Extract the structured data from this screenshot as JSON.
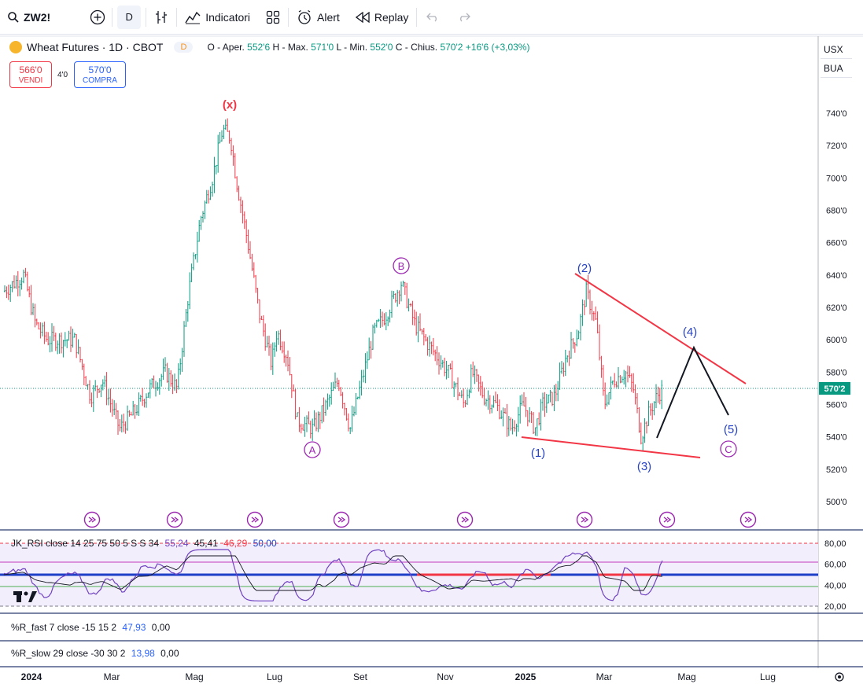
{
  "toolbar": {
    "symbol": "ZW2!",
    "interval": "D",
    "indicators": "Indicatori",
    "alert": "Alert",
    "replay": "Replay"
  },
  "legend": {
    "title": "Wheat Futures · 1D · CBOT",
    "d_badge": "D",
    "o_label": "O - Aper.",
    "o_val": "552'6",
    "h_label": "H - Max.",
    "h_val": "571'0",
    "l_label": "L - Min.",
    "l_val": "552'0",
    "c_label": "C - Chius.",
    "c_val": "570'2",
    "change": "+16'6 (+3,03%)"
  },
  "trade": {
    "sell_price": "566'0",
    "sell_label": "VENDI",
    "spread": "4'0",
    "buy_price": "570'0",
    "buy_label": "COMPRA"
  },
  "currency": {
    "unit": "USX",
    "exchange": "BUA"
  },
  "price_axis": {
    "ticks": [
      "740'0",
      "720'0",
      "700'0",
      "680'0",
      "660'0",
      "640'0",
      "620'0",
      "600'0",
      "580'0",
      "560'0",
      "540'0",
      "520'0",
      "500'0"
    ],
    "last_price": "570'2"
  },
  "time_axis": [
    "2024",
    "Mar",
    "Mag",
    "Lug",
    "Set",
    "Nov",
    "2025",
    "Mar",
    "Mag",
    "Lug"
  ],
  "waves": {
    "x": "(x)",
    "A": "A",
    "B": "B",
    "C": "C",
    "w1": "(1)",
    "w2": "(2)",
    "w3": "(3)",
    "w4": "(4)",
    "w5": "(5)"
  },
  "rsi": {
    "legend": "JK_RSI close 14 25 75 50 5 S S 34",
    "values": [
      "55,24",
      "45,41",
      "46,29",
      "50,00"
    ],
    "ticks": [
      "80,00",
      "60,00",
      "40,00",
      "20,00"
    ]
  },
  "r_fast": {
    "legend": "%R_fast 7 close -15 15 2",
    "v1": "47,93",
    "v2": "0,00"
  },
  "r_slow": {
    "legend": "%R_slow 29 close -30 30 2",
    "v1": "13,98",
    "v2": "0,00"
  },
  "colors": {
    "up": "#089981",
    "down": "#f23645",
    "wave_blue": "#2642c5",
    "wave_purple": "#9c27b0",
    "trend": "#f23645"
  },
  "chart_data": {
    "type": "candlestick",
    "title": "Wheat Futures · 1D · CBOT",
    "ylim": [
      490,
      770
    ],
    "x": [
      "2024-01",
      "2024-01",
      "2024-02",
      "2024-02",
      "2024-03",
      "2024-03",
      "2024-04",
      "2024-04",
      "2024-05",
      "2024-05",
      "2024-06",
      "2024-06",
      "2024-07",
      "2024-07",
      "2024-08",
      "2024-08",
      "2024-09",
      "2024-09",
      "2024-10",
      "2024-10",
      "2024-11",
      "2024-11",
      "2024-12",
      "2024-12",
      "2025-01",
      "2025-01",
      "2025-02",
      "2025-02",
      "2025-03",
      "2025-03",
      "2025-04"
    ],
    "close": [
      630,
      615,
      595,
      580,
      560,
      545,
      560,
      575,
      620,
      690,
      735,
      700,
      640,
      600,
      560,
      545,
      550,
      565,
      600,
      630,
      600,
      575,
      560,
      550,
      548,
      560,
      600,
      625,
      570,
      580,
      570
    ],
    "projection": [
      [
        545,
        538
      ],
      [
        595,
        595
      ],
      [
        555,
        555
      ]
    ],
    "trendlines": {
      "upper": [
        [
          640,
          2025.1
        ],
        [
          580,
          2025.4
        ]
      ],
      "lower": [
        [
          540,
          2025.0
        ],
        [
          527,
          2025.5
        ]
      ]
    }
  }
}
